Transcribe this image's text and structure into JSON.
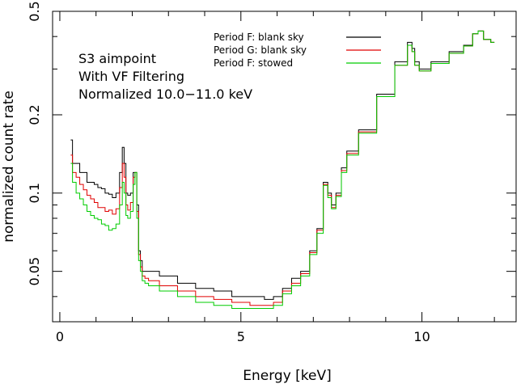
{
  "chart_data": {
    "type": "line",
    "xlabel": "Energy [keV]",
    "ylabel": "normalized count rate",
    "xlim": [
      -0.2,
      12.6
    ],
    "ylim": [
      0.032,
      0.5
    ],
    "yscale": "log",
    "x_ticks": [
      0,
      5,
      10
    ],
    "y_ticks": [
      0.05,
      0.1,
      0.2,
      0.5
    ],
    "annotations": [
      "S3 aimpoint",
      "With VF Filtering",
      "Normalized 10.0−11.0 keV"
    ],
    "legend_position": "top-right",
    "series": [
      {
        "name": "Period F: blank sky",
        "color": "#000000",
        "x": [
          0.3,
          0.4,
          0.5,
          0.6,
          0.7,
          0.8,
          0.9,
          1.0,
          1.1,
          1.2,
          1.3,
          1.4,
          1.5,
          1.6,
          1.7,
          1.75,
          1.8,
          1.85,
          1.9,
          2.0,
          2.05,
          2.1,
          2.15,
          2.2,
          2.25,
          2.3,
          2.4,
          2.5,
          3.0,
          3.5,
          4.0,
          4.5,
          5.0,
          5.5,
          5.8,
          6.0,
          6.3,
          6.5,
          6.8,
          7.0,
          7.2,
          7.35,
          7.45,
          7.55,
          7.7,
          7.85,
          8.0,
          8.5,
          9.0,
          9.5,
          9.7,
          9.75,
          9.85,
          10.0,
          10.5,
          11.0,
          11.3,
          11.5,
          11.6,
          11.8,
          12.0
        ],
        "y": [
          0.16,
          0.13,
          0.13,
          0.12,
          0.12,
          0.11,
          0.11,
          0.108,
          0.105,
          0.104,
          0.1,
          0.099,
          0.096,
          0.1,
          0.12,
          0.15,
          0.13,
          0.1,
          0.098,
          0.1,
          0.12,
          0.12,
          0.09,
          0.06,
          0.055,
          0.05,
          0.05,
          0.05,
          0.048,
          0.045,
          0.043,
          0.042,
          0.04,
          0.04,
          0.039,
          0.04,
          0.043,
          0.047,
          0.05,
          0.06,
          0.073,
          0.11,
          0.1,
          0.09,
          0.1,
          0.125,
          0.145,
          0.175,
          0.24,
          0.32,
          0.38,
          0.36,
          0.32,
          0.3,
          0.32,
          0.35,
          0.37,
          0.41,
          0.42,
          0.39,
          0.38
        ]
      },
      {
        "name": "Period G: blank sky",
        "color": "#e00000",
        "x": [
          0.3,
          0.4,
          0.5,
          0.6,
          0.7,
          0.8,
          0.9,
          1.0,
          1.1,
          1.2,
          1.3,
          1.4,
          1.5,
          1.6,
          1.7,
          1.75,
          1.8,
          1.85,
          1.9,
          2.0,
          2.05,
          2.1,
          2.15,
          2.2,
          2.25,
          2.3,
          2.4,
          2.5,
          3.0,
          3.5,
          4.0,
          4.5,
          5.0,
          5.5,
          5.8,
          6.0,
          6.3,
          6.5,
          6.8,
          7.0,
          7.2,
          7.35,
          7.45,
          7.55,
          7.7,
          7.85,
          8.0,
          8.5,
          9.0,
          9.5,
          9.7,
          9.75,
          9.85,
          10.0,
          10.5,
          11.0,
          11.3,
          11.5,
          11.6,
          11.8,
          12.0
        ],
        "y": [
          0.14,
          0.12,
          0.115,
          0.108,
          0.103,
          0.098,
          0.095,
          0.092,
          0.088,
          0.088,
          0.085,
          0.086,
          0.083,
          0.087,
          0.105,
          0.13,
          0.115,
          0.09,
          0.086,
          0.092,
          0.115,
          0.12,
          0.085,
          0.058,
          0.052,
          0.048,
          0.047,
          0.046,
          0.044,
          0.042,
          0.04,
          0.039,
          0.038,
          0.037,
          0.037,
          0.038,
          0.042,
          0.045,
          0.049,
          0.059,
          0.072,
          0.108,
          0.098,
          0.088,
          0.098,
          0.122,
          0.142,
          0.172,
          0.235,
          0.31,
          0.37,
          0.35,
          0.31,
          0.295,
          0.315,
          0.345,
          0.368,
          0.41,
          0.42,
          0.39,
          0.38
        ]
      },
      {
        "name": "Period F: stowed",
        "color": "#00cc00",
        "x": [
          0.3,
          0.4,
          0.5,
          0.6,
          0.7,
          0.8,
          0.9,
          1.0,
          1.1,
          1.2,
          1.3,
          1.4,
          1.5,
          1.6,
          1.7,
          1.75,
          1.8,
          1.85,
          1.9,
          2.0,
          2.05,
          2.1,
          2.15,
          2.2,
          2.25,
          2.3,
          2.4,
          2.5,
          3.0,
          3.5,
          4.0,
          4.5,
          5.0,
          5.5,
          5.8,
          6.0,
          6.3,
          6.5,
          6.8,
          7.0,
          7.2,
          7.35,
          7.45,
          7.55,
          7.7,
          7.85,
          8.0,
          8.5,
          9.0,
          9.5,
          9.7,
          9.75,
          9.85,
          10.0,
          10.5,
          11.0,
          11.3,
          11.5,
          11.6,
          11.8,
          12.0
        ],
        "y": [
          0.13,
          0.11,
          0.1,
          0.095,
          0.09,
          0.085,
          0.082,
          0.08,
          0.079,
          0.076,
          0.075,
          0.072,
          0.073,
          0.076,
          0.09,
          0.11,
          0.1,
          0.082,
          0.08,
          0.085,
          0.108,
          0.12,
          0.08,
          0.055,
          0.05,
          0.046,
          0.045,
          0.044,
          0.042,
          0.04,
          0.038,
          0.037,
          0.036,
          0.036,
          0.036,
          0.037,
          0.041,
          0.044,
          0.048,
          0.058,
          0.07,
          0.107,
          0.096,
          0.087,
          0.097,
          0.12,
          0.14,
          0.17,
          0.235,
          0.31,
          0.37,
          0.35,
          0.31,
          0.295,
          0.315,
          0.345,
          0.368,
          0.41,
          0.42,
          0.39,
          0.38
        ]
      }
    ]
  }
}
